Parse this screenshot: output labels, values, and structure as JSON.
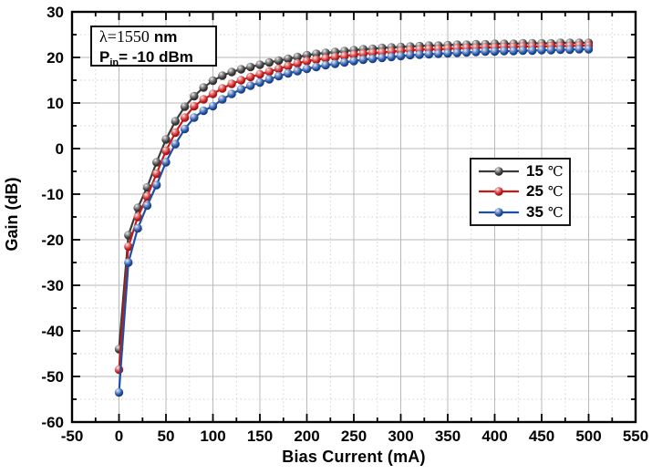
{
  "page": {
    "background": "#ffffff"
  },
  "chart_data": {
    "type": "line",
    "title": "",
    "xlabel": "Bias Current (mA)",
    "ylabel": "Gain (dB)",
    "xlim": [
      -50,
      550
    ],
    "ylim": [
      -60,
      30
    ],
    "x_major_ticks": [
      -50,
      0,
      50,
      100,
      150,
      200,
      250,
      300,
      350,
      400,
      450,
      500,
      550
    ],
    "y_major_ticks": [
      -60,
      -50,
      -40,
      -30,
      -20,
      -10,
      0,
      10,
      20,
      30
    ],
    "x_minor_step": 25,
    "y_minor_step": 5,
    "grid": {
      "major_style": "solid",
      "minor_style": "dotted",
      "major_color": "#b9b9b9",
      "minor_color": "#d2d2d2"
    },
    "frame_color": "#000000",
    "annotation": {
      "line1_serif": "λ=1550",
      "line1_bold": "nm",
      "line2_base": "P",
      "line2_sub": "in",
      "line2_rest": "= -10 dBm"
    },
    "legend": {
      "position": "right-middle",
      "items": [
        {
          "value": "15",
          "unit": "℃"
        },
        {
          "value": "25",
          "unit": "℃"
        },
        {
          "value": "35",
          "unit": "℃"
        }
      ]
    },
    "x": [
      0,
      10,
      20,
      30,
      40,
      50,
      60,
      70,
      80,
      90,
      100,
      110,
      120,
      130,
      140,
      150,
      160,
      170,
      180,
      190,
      200,
      210,
      220,
      230,
      240,
      250,
      260,
      270,
      280,
      290,
      300,
      310,
      320,
      330,
      340,
      350,
      360,
      370,
      380,
      390,
      400,
      410,
      420,
      430,
      440,
      450,
      460,
      470,
      480,
      490,
      500
    ],
    "series": [
      {
        "name": "15 ℃",
        "color": "#3b3b3b",
        "values": [
          -44,
          -19,
          -13,
          -8.5,
          -3,
          2,
          6,
          9.2,
          11.5,
          13.4,
          14.9,
          16,
          16.8,
          17.4,
          17.9,
          18.4,
          18.9,
          19.3,
          19.7,
          20.1,
          20.5,
          20.8,
          21,
          21.2,
          21.4,
          21.6,
          21.8,
          21.9,
          22.1,
          22.2,
          22.3,
          22.4,
          22.5,
          22.6,
          22.6,
          22.7,
          22.8,
          22.8,
          22.9,
          22.9,
          23,
          23,
          23,
          23.1,
          23.1,
          23.1,
          23.1,
          23.2,
          23.2,
          23.2,
          23.2
        ]
      },
      {
        "name": "25 ℃",
        "color": "#c81919",
        "values": [
          -48.5,
          -21.5,
          -15,
          -10.5,
          -5.5,
          -0.5,
          3.5,
          6.8,
          9.3,
          10.8,
          12,
          13.2,
          14.2,
          15,
          15.7,
          16.3,
          16.9,
          17.5,
          18.1,
          18.7,
          19.2,
          19.5,
          19.8,
          20.1,
          20.3,
          20.6,
          20.8,
          21,
          21.1,
          21.3,
          21.4,
          21.6,
          21.7,
          21.8,
          21.8,
          21.9,
          22,
          22.1,
          22.1,
          22.2,
          22.2,
          22.3,
          22.3,
          22.4,
          22.4,
          22.4,
          22.5,
          22.5,
          22.5,
          22.6,
          22.6
        ]
      },
      {
        "name": "35 ℃",
        "color": "#1f4fa3",
        "values": [
          -53.5,
          -25,
          -17.5,
          -12.5,
          -8,
          -3,
          1,
          4.3,
          6.8,
          8.3,
          9.3,
          10.8,
          12,
          13,
          13.8,
          14.5,
          15.2,
          15.9,
          16.5,
          17,
          17.5,
          17.9,
          18.3,
          18.6,
          18.9,
          19.2,
          19.5,
          19.7,
          19.9,
          20.1,
          20.3,
          20.5,
          20.6,
          20.7,
          20.8,
          20.9,
          21,
          21.1,
          21.2,
          21.3,
          21.3,
          21.4,
          21.4,
          21.5,
          21.5,
          21.6,
          21.6,
          21.7,
          21.7,
          21.8,
          21.8
        ]
      }
    ]
  }
}
